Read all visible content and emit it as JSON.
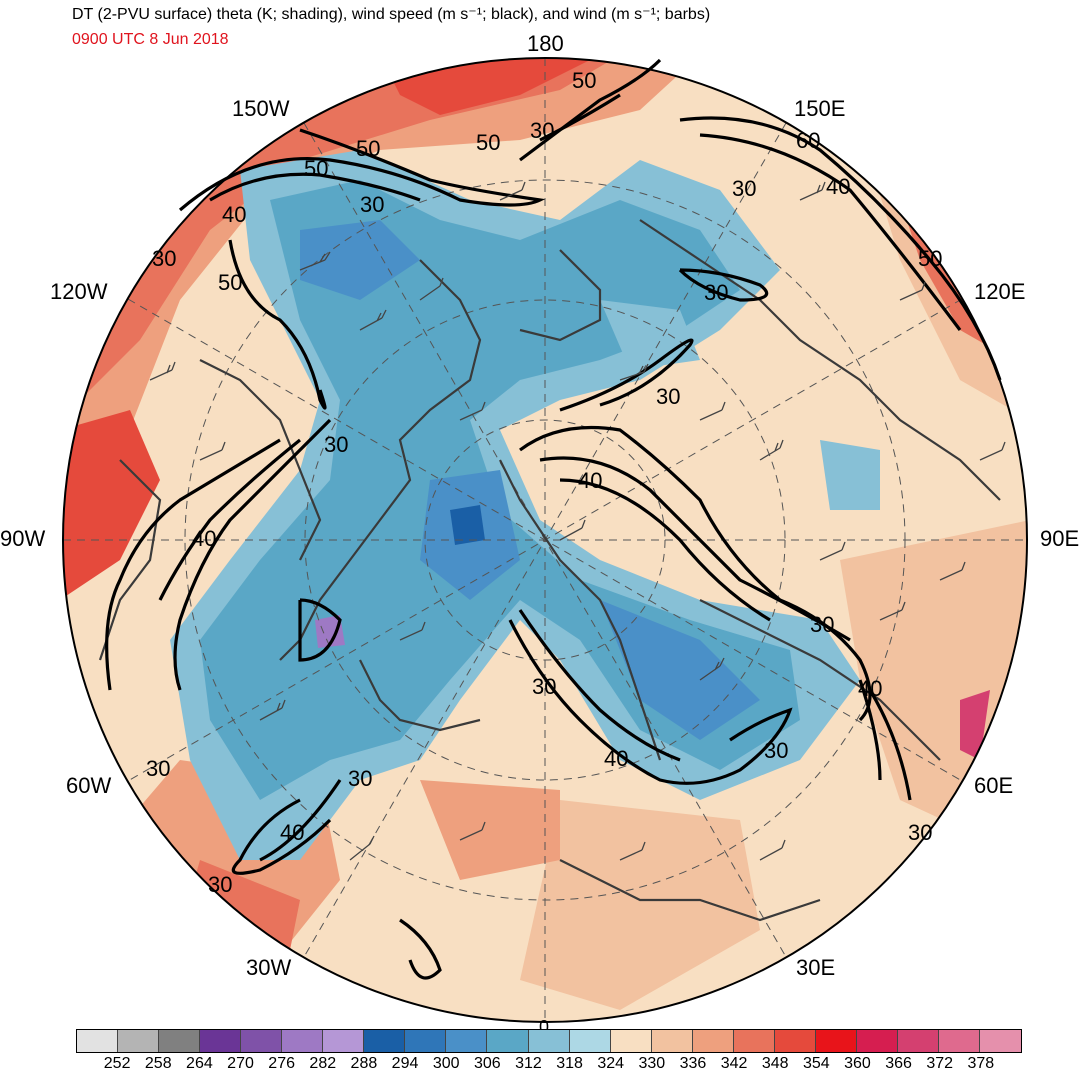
{
  "header": {
    "title": "DT (2-PVU surface) theta (K; shading), wind speed (m s⁻¹; black), and wind (m s⁻¹; barbs)",
    "valid_time": "0900 UTC 8 Jun 2018"
  },
  "longitude_labels": {
    "n180": "180",
    "w150": "150W",
    "e150": "150E",
    "w120": "120W",
    "e120": "120E",
    "w90": "90W",
    "e90": "90E",
    "w60": "60W",
    "e60": "60E",
    "w30": "30W",
    "e30": "30E",
    "s0": "0"
  },
  "contour_labels": {
    "l1": "50",
    "l2": "50",
    "l3": "30",
    "l4": "50",
    "l5": "50",
    "l6": "30",
    "l7": "40",
    "l8": "30",
    "l9": "50",
    "l10": "60",
    "l11": "40",
    "l12": "30",
    "l13": "50",
    "l14": "30",
    "l15": "30",
    "l16": "30",
    "l17": "40",
    "l18": "40",
    "l19": "30",
    "l20": "40",
    "l21": "30",
    "l22": "40",
    "l23": "30",
    "l24": "30",
    "l25": "30",
    "l26": "40",
    "l27": "30",
    "l28": "30"
  },
  "colorbar": {
    "colors": [
      "#e2e2e2",
      "#b4b4b4",
      "#808080",
      "#6a3596",
      "#7f52a8",
      "#9e79c4",
      "#b597d6",
      "#1a5fa6",
      "#2f76b8",
      "#4a90c8",
      "#5aa7c6",
      "#87c0d6",
      "#add8e5",
      "#f8dfc2",
      "#f2c2a0",
      "#eea07e",
      "#e8735c",
      "#e54a3c",
      "#e8141a",
      "#d61e50",
      "#d44070",
      "#df6a8e",
      "#e590ac"
    ],
    "ticks": [
      "252",
      "258",
      "264",
      "270",
      "276",
      "282",
      "288",
      "294",
      "300",
      "306",
      "312",
      "318",
      "324",
      "330",
      "336",
      "342",
      "348",
      "354",
      "360",
      "366",
      "372",
      "378"
    ]
  },
  "map": {
    "background_colors": {
      "ocean_deep": "#5aa7c6",
      "mid_blue": "#87c0d6",
      "light_blue": "#add8e5",
      "peach": "#f8dfc2",
      "light_orange": "#f2c2a0",
      "salmon": "#e8735c",
      "red": "#e54a3c"
    }
  }
}
